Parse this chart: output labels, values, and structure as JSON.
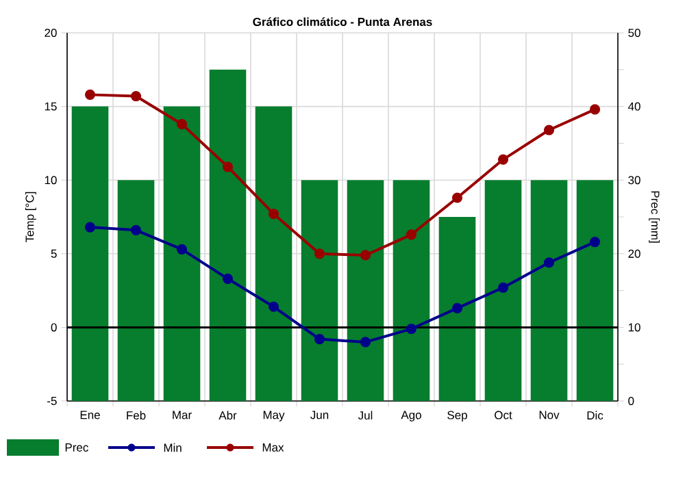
{
  "chart_data": {
    "type": "bar",
    "title": "Gráfico climático - Punta Arenas",
    "ylabel": "Temp [°C]",
    "y2label": "Prec [mm]",
    "categories": [
      "Ene",
      "Feb",
      "Mar",
      "Abr",
      "May",
      "Jun",
      "Jul",
      "Ago",
      "Sep",
      "Oct",
      "Nov",
      "Dic"
    ],
    "series": [
      {
        "name": "Prec",
        "axis": "y2",
        "color": "#077d2e",
        "values": [
          40,
          30,
          40,
          45,
          40,
          30,
          30,
          30,
          25,
          30,
          30,
          30
        ]
      },
      {
        "name": "Min",
        "type": "line",
        "color": "#00008b",
        "values": [
          6.8,
          6.6,
          5.3,
          3.3,
          1.4,
          -0.8,
          -1.0,
          -0.1,
          1.3,
          2.7,
          4.4,
          5.8
        ]
      },
      {
        "name": "Max",
        "type": "line",
        "color": "#990000",
        "values": [
          15.8,
          15.7,
          13.8,
          10.9,
          7.7,
          5.0,
          4.9,
          6.3,
          8.8,
          11.4,
          13.4,
          14.8
        ]
      }
    ],
    "ylim": [
      -5,
      20
    ],
    "yticks": [
      -5,
      0,
      5,
      10,
      15,
      20
    ],
    "y2lim": [
      0,
      50
    ],
    "y2ticks": [
      0,
      {
        "value": 5,
        "label": null
      },
      10,
      {
        "value": 15,
        "label": null
      },
      20,
      {
        "value": 25,
        "label": null
      },
      30,
      {
        "value": 35,
        "label": null
      },
      40,
      {
        "value": 45,
        "label": null
      },
      50
    ],
    "ref_lines": [
      {
        "axis": "y",
        "value": 0,
        "color": "#000000"
      }
    ],
    "grid": true,
    "legend": "bottom",
    "marker": "circle",
    "line_style": "solid"
  }
}
